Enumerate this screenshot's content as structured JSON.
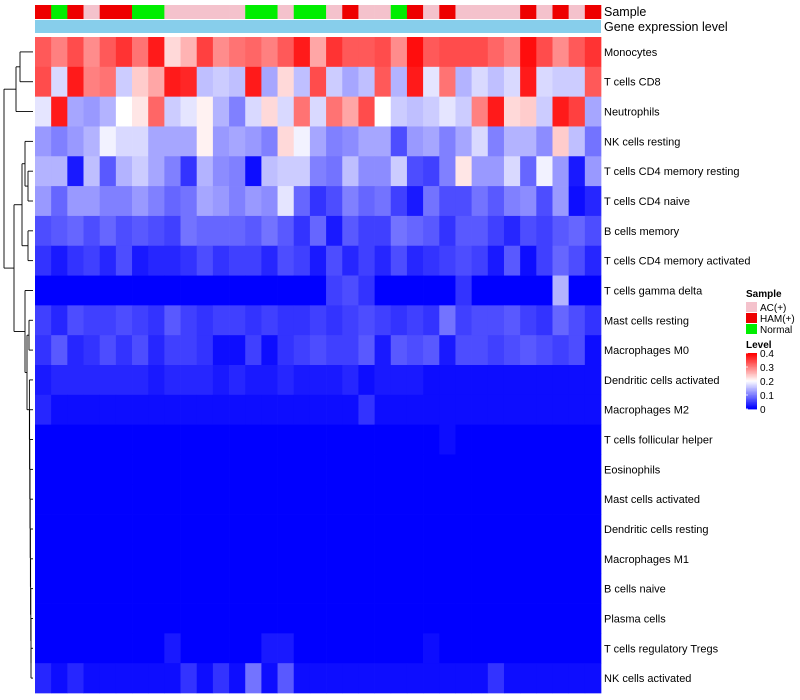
{
  "chart_data": {
    "type": "heatmap",
    "annotation_tracks": [
      "Sample",
      "Gene expression level"
    ],
    "sample_groups": [
      "AC(+)",
      "HAM(+)",
      "Normal"
    ],
    "group_colors": {
      "AC(+)": "#f4c2cc",
      "HAM(+)": "#ee0000",
      "Normal": "#00ee00"
    },
    "sample_annotation": [
      "HAM(+)",
      "Normal",
      "HAM(+)",
      "AC(+)",
      "HAM(+)",
      "HAM(+)",
      "Normal",
      "Normal",
      "AC(+)",
      "AC(+)",
      "AC(+)",
      "AC(+)",
      "AC(+)",
      "Normal",
      "Normal",
      "AC(+)",
      "Normal",
      "Normal",
      "AC(+)",
      "HAM(+)",
      "AC(+)",
      "AC(+)",
      "Normal",
      "HAM(+)",
      "AC(+)",
      "HAM(+)",
      "AC(+)",
      "AC(+)",
      "AC(+)",
      "AC(+)",
      "HAM(+)",
      "AC(+)",
      "HAM(+)",
      "AC(+)",
      "HAM(+)"
    ],
    "expression_bar_color": "#87ceeb",
    "legend": {
      "sample_title": "Sample",
      "level_title": "Level",
      "level_ticks": [
        {
          "value": 0.4,
          "label": "0.4"
        },
        {
          "value": 0.3,
          "label": "0.3"
        },
        {
          "value": 0.2,
          "label": "0.2"
        },
        {
          "value": 0.1,
          "label": "0.1"
        },
        {
          "value": 0,
          "label": "0"
        }
      ]
    },
    "level_range": [
      0,
      0.4
    ],
    "colors": {
      "low": "#0000ff",
      "mid": "#ffffff",
      "high": "#ff0000"
    },
    "rows": [
      {
        "name": "Monocytes",
        "values": [
          0.33,
          0.3,
          0.34,
          0.29,
          0.33,
          0.36,
          0.31,
          0.38,
          0.23,
          0.26,
          0.35,
          0.29,
          0.31,
          0.32,
          0.3,
          0.33,
          0.38,
          0.27,
          0.36,
          0.33,
          0.33,
          0.34,
          0.29,
          0.39,
          0.33,
          0.34,
          0.34,
          0.34,
          0.32,
          0.3,
          0.39,
          0.34,
          0.29,
          0.33,
          0.36
        ]
      },
      {
        "name": "T cells CD8",
        "values": [
          0.34,
          0.17,
          0.38,
          0.3,
          0.31,
          0.16,
          0.24,
          0.27,
          0.38,
          0.37,
          0.15,
          0.16,
          0.15,
          0.38,
          0.13,
          0.23,
          0.15,
          0.34,
          0.16,
          0.13,
          0.15,
          0.33,
          0.14,
          0.38,
          0.18,
          0.31,
          0.14,
          0.17,
          0.15,
          0.17,
          0.38,
          0.17,
          0.16,
          0.16,
          0.33
        ]
      },
      {
        "name": "Neutrophils",
        "values": [
          0.18,
          0.38,
          0.13,
          0.12,
          0.14,
          0.2,
          0.22,
          0.32,
          0.16,
          0.18,
          0.21,
          0.14,
          0.1,
          0.17,
          0.23,
          0.17,
          0.31,
          0.17,
          0.31,
          0.27,
          0.34,
          0.2,
          0.16,
          0.15,
          0.16,
          0.18,
          0.16,
          0.3,
          0.38,
          0.23,
          0.24,
          0.16,
          0.38,
          0.35,
          0.13
        ]
      },
      {
        "name": "NK cells resting",
        "values": [
          0.12,
          0.1,
          0.12,
          0.14,
          0.19,
          0.17,
          0.17,
          0.13,
          0.13,
          0.13,
          0.21,
          0.12,
          0.13,
          0.12,
          0.1,
          0.23,
          0.19,
          0.13,
          0.1,
          0.11,
          0.13,
          0.13,
          0.06,
          0.12,
          0.13,
          0.1,
          0.13,
          0.17,
          0.1,
          0.14,
          0.14,
          0.11,
          0.24,
          0.15,
          0.09
        ]
      },
      {
        "name": "T cells CD4 memory resting",
        "values": [
          0.14,
          0.14,
          0.02,
          0.15,
          0.07,
          0.14,
          0.16,
          0.13,
          0.1,
          0.04,
          0.14,
          0.11,
          0.1,
          0.01,
          0.15,
          0.16,
          0.16,
          0.1,
          0.09,
          0.15,
          0.11,
          0.11,
          0.16,
          0.06,
          0.05,
          0.1,
          0.22,
          0.12,
          0.12,
          0.17,
          0.08,
          0.19,
          0.12,
          0.02,
          0.12
        ]
      },
      {
        "name": "T cells CD4 naive",
        "values": [
          0.12,
          0.08,
          0.12,
          0.12,
          0.1,
          0.1,
          0.12,
          0.1,
          0.08,
          0.09,
          0.13,
          0.12,
          0.1,
          0.12,
          0.11,
          0.18,
          0.08,
          0.04,
          0.06,
          0.1,
          0.08,
          0.09,
          0.05,
          0.02,
          0.09,
          0.06,
          0.06,
          0.09,
          0.07,
          0.1,
          0.11,
          0.06,
          0.12,
          0.01,
          0.03
        ]
      },
      {
        "name": "B cells memory",
        "values": [
          0.06,
          0.07,
          0.08,
          0.06,
          0.08,
          0.06,
          0.07,
          0.06,
          0.05,
          0.09,
          0.08,
          0.08,
          0.08,
          0.07,
          0.09,
          0.07,
          0.04,
          0.08,
          0.02,
          0.07,
          0.05,
          0.05,
          0.09,
          0.08,
          0.07,
          0.04,
          0.07,
          0.07,
          0.05,
          0.03,
          0.06,
          0.05,
          0.07,
          0.08,
          0.06
        ]
      },
      {
        "name": "T cells CD4 memory activated",
        "values": [
          0.04,
          0.02,
          0.04,
          0.05,
          0.03,
          0.06,
          0.02,
          0.03,
          0.03,
          0.04,
          0.06,
          0.04,
          0.05,
          0.05,
          0.03,
          0.06,
          0.05,
          0.02,
          0.06,
          0.03,
          0.05,
          0.03,
          0.06,
          0.03,
          0.04,
          0.05,
          0.06,
          0.05,
          0.02,
          0.07,
          0.01,
          0.05,
          0.08,
          0.06,
          0.03
        ]
      },
      {
        "name": "T cells gamma delta",
        "values": [
          0,
          0,
          0,
          0,
          0,
          0,
          0,
          0,
          0,
          0,
          0,
          0,
          0,
          0,
          0,
          0,
          0,
          0,
          0.05,
          0.06,
          0.04,
          0,
          0,
          0,
          0,
          0,
          0.04,
          0,
          0,
          0,
          0,
          0,
          0.14,
          0,
          0
        ]
      },
      {
        "name": "Mast cells resting",
        "values": [
          0.05,
          0.03,
          0.06,
          0.05,
          0.05,
          0.06,
          0.05,
          0.04,
          0.07,
          0.05,
          0.04,
          0.05,
          0.05,
          0.04,
          0.05,
          0.04,
          0.04,
          0.05,
          0.04,
          0.05,
          0.06,
          0.05,
          0.04,
          0.05,
          0.04,
          0.09,
          0.05,
          0.06,
          0.06,
          0.07,
          0.05,
          0.04,
          0.08,
          0.06,
          0.04
        ]
      },
      {
        "name": "Macrophages M0",
        "values": [
          0.04,
          0.07,
          0.03,
          0.04,
          0.06,
          0.04,
          0.06,
          0.03,
          0.05,
          0.05,
          0.04,
          0.01,
          0.01,
          0.05,
          0.01,
          0.04,
          0.05,
          0.06,
          0.05,
          0.05,
          0.07,
          0.02,
          0.07,
          0.06,
          0.07,
          0.02,
          0.06,
          0.06,
          0.05,
          0.06,
          0.07,
          0.06,
          0.05,
          0.06,
          0.01
        ]
      },
      {
        "name": "Dendritic cells activated",
        "values": [
          0.02,
          0.03,
          0.03,
          0.03,
          0.03,
          0.03,
          0.03,
          0.02,
          0.03,
          0.03,
          0.03,
          0.02,
          0.03,
          0.02,
          0.02,
          0.03,
          0.02,
          0.02,
          0.02,
          0.03,
          0.01,
          0.02,
          0.02,
          0.02,
          0.01,
          0.01,
          0.01,
          0.01,
          0.01,
          0.01,
          0.01,
          0.01,
          0.01,
          0.01,
          0.01
        ]
      },
      {
        "name": "Macrophages M2",
        "values": [
          0.03,
          0.01,
          0.01,
          0.01,
          0.01,
          0.01,
          0.01,
          0.01,
          0.01,
          0.01,
          0.01,
          0.01,
          0.01,
          0.01,
          0.01,
          0.01,
          0.01,
          0.01,
          0.01,
          0.01,
          0.04,
          0.01,
          0.01,
          0.01,
          0.01,
          0.01,
          0.01,
          0.01,
          0.01,
          0.01,
          0.01,
          0.01,
          0.01,
          0.01,
          0.01
        ]
      },
      {
        "name": "T cells follicular helper",
        "values": [
          0,
          0,
          0,
          0,
          0,
          0,
          0,
          0,
          0,
          0,
          0,
          0,
          0,
          0,
          0,
          0,
          0,
          0,
          0,
          0,
          0,
          0,
          0,
          0,
          0,
          0.01,
          0,
          0,
          0,
          0,
          0,
          0,
          0,
          0,
          0
        ]
      },
      {
        "name": "Eosinophils",
        "values": [
          0,
          0,
          0,
          0,
          0,
          0,
          0,
          0,
          0,
          0,
          0,
          0,
          0,
          0,
          0,
          0,
          0,
          0,
          0,
          0,
          0,
          0,
          0,
          0,
          0,
          0,
          0,
          0,
          0,
          0,
          0,
          0,
          0,
          0,
          0
        ]
      },
      {
        "name": "Mast cells activated",
        "values": [
          0,
          0,
          0,
          0,
          0,
          0,
          0,
          0,
          0,
          0,
          0,
          0,
          0,
          0,
          0,
          0,
          0,
          0,
          0,
          0,
          0,
          0,
          0,
          0,
          0,
          0,
          0,
          0,
          0,
          0,
          0,
          0,
          0,
          0,
          0
        ]
      },
      {
        "name": "Dendritic cells resting",
        "values": [
          0,
          0,
          0,
          0,
          0,
          0,
          0,
          0,
          0,
          0,
          0,
          0,
          0,
          0,
          0,
          0,
          0,
          0,
          0,
          0,
          0,
          0,
          0,
          0,
          0,
          0,
          0,
          0,
          0,
          0,
          0,
          0,
          0,
          0,
          0
        ]
      },
      {
        "name": "Macrophages M1",
        "values": [
          0,
          0,
          0,
          0,
          0,
          0,
          0,
          0,
          0,
          0,
          0,
          0,
          0,
          0,
          0,
          0,
          0,
          0,
          0,
          0,
          0,
          0,
          0,
          0,
          0,
          0,
          0,
          0,
          0,
          0,
          0,
          0,
          0,
          0,
          0
        ]
      },
      {
        "name": "B cells naive",
        "values": [
          0,
          0,
          0,
          0,
          0,
          0,
          0,
          0,
          0,
          0,
          0,
          0,
          0,
          0,
          0,
          0,
          0,
          0,
          0,
          0,
          0,
          0,
          0,
          0,
          0,
          0,
          0,
          0,
          0,
          0,
          0,
          0,
          0,
          0,
          0
        ]
      },
      {
        "name": "Plasma cells",
        "values": [
          0,
          0,
          0,
          0,
          0,
          0,
          0,
          0,
          0,
          0,
          0,
          0,
          0,
          0,
          0,
          0,
          0,
          0,
          0,
          0,
          0,
          0,
          0,
          0,
          0,
          0,
          0,
          0,
          0,
          0,
          0,
          0,
          0,
          0,
          0
        ]
      },
      {
        "name": "T cells regulatory  Tregs",
        "values": [
          0,
          0,
          0,
          0,
          0,
          0,
          0,
          0,
          0.02,
          0,
          0,
          0,
          0,
          0,
          0.02,
          0.02,
          0,
          0,
          0,
          0,
          0,
          0,
          0,
          0,
          0.01,
          0,
          0,
          0,
          0,
          0,
          0,
          0,
          0,
          0,
          0
        ]
      },
      {
        "name": "NK cells activated",
        "values": [
          0.03,
          0.01,
          0.03,
          0.01,
          0.01,
          0.01,
          0.01,
          0.01,
          0.01,
          0.04,
          0.01,
          0.04,
          0.01,
          0.09,
          0.01,
          0.07,
          0.01,
          0.01,
          0.01,
          0.01,
          0.01,
          0.01,
          0.01,
          0.01,
          0.01,
          0.01,
          0.01,
          0.01,
          0.04,
          0.01,
          0.01,
          0.01,
          0.01,
          0.01,
          0.01
        ]
      }
    ]
  }
}
